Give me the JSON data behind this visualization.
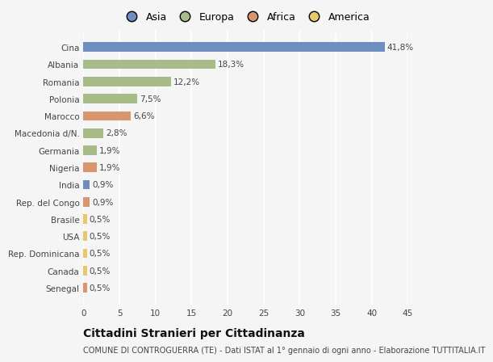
{
  "categories": [
    "Cina",
    "Albania",
    "Romania",
    "Polonia",
    "Marocco",
    "Macedonia d/N.",
    "Germania",
    "Nigeria",
    "India",
    "Rep. del Congo",
    "Brasile",
    "USA",
    "Rep. Dominicana",
    "Canada",
    "Senegal"
  ],
  "values": [
    41.8,
    18.3,
    12.2,
    7.5,
    6.6,
    2.8,
    1.9,
    1.9,
    0.9,
    0.9,
    0.5,
    0.5,
    0.5,
    0.5,
    0.5
  ],
  "labels": [
    "41,8%",
    "18,3%",
    "12,2%",
    "7,5%",
    "6,6%",
    "2,8%",
    "1,9%",
    "1,9%",
    "0,9%",
    "0,9%",
    "0,5%",
    "0,5%",
    "0,5%",
    "0,5%",
    "0,5%"
  ],
  "colors": [
    "#6d8ebf",
    "#a8bc8a",
    "#a8bc8a",
    "#a8bc8a",
    "#d9956e",
    "#a8bc8a",
    "#a8bc8a",
    "#d9956e",
    "#6d8ebf",
    "#d9956e",
    "#e8c86e",
    "#e8c86e",
    "#e8c86e",
    "#e8c86e",
    "#d9956e"
  ],
  "legend_labels": [
    "Asia",
    "Europa",
    "Africa",
    "America"
  ],
  "legend_colors": [
    "#6d8ebf",
    "#a8bc8a",
    "#d9956e",
    "#e8c86e"
  ],
  "title": "Cittadini Stranieri per Cittadinanza",
  "subtitle": "COMUNE DI CONTROGUERRA (TE) - Dati ISTAT al 1° gennaio di ogni anno - Elaborazione TUTTITALIA.IT",
  "xlim": [
    0,
    45
  ],
  "xticks": [
    0,
    5,
    10,
    15,
    20,
    25,
    30,
    35,
    40,
    45
  ],
  "bg_color": "#f5f5f5",
  "grid_color": "#ffffff",
  "bar_height": 0.55,
  "title_fontsize": 10,
  "subtitle_fontsize": 7,
  "label_fontsize": 7.5,
  "tick_fontsize": 7.5,
  "legend_fontsize": 9
}
